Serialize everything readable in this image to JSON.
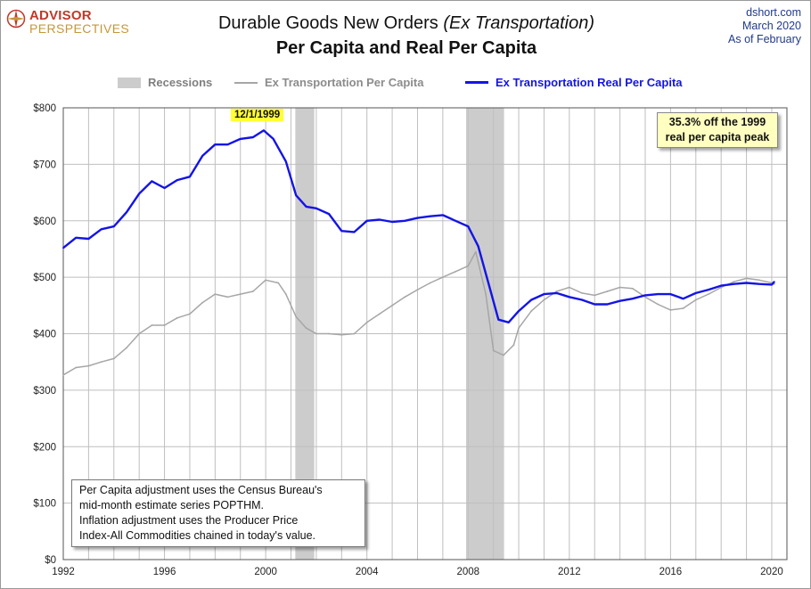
{
  "branding": {
    "logo_line1": "ADVISOR",
    "logo_line2": "PERSPECTIVES",
    "logo_icon": "compass-rose-icon",
    "source_line1": "dshort.com",
    "source_line2": "March 2020",
    "source_line3": "As  of February"
  },
  "chart_title_main": "Durable Goods New Orders",
  "chart_title_italic": "(Ex Transportation)",
  "chart_subtitle": "Per Capita and Real Per Capita",
  "legend": {
    "recessions": "Recessions",
    "nominal": "Ex Transportation Per Capita",
    "real": "Ex Transportation Real Per Capita"
  },
  "annotations": {
    "peak_label": "12/1/1999",
    "callout_line1": "35.3% off the 1999",
    "callout_line2": "real per capita peak"
  },
  "note": {
    "line1": "Per Capita adjustment uses the Census Bureau's",
    "line2": "mid-month estimate series POPTHM.",
    "line3": "Inflation adjustment uses the Producer Price",
    "line4": "Index-All Commodities chained in today's value."
  },
  "colors": {
    "real_series": "#1414e6",
    "nominal_series": "#a6a6a6",
    "recession_band": "#cccccc",
    "grid": "#bfbfbf",
    "source_text": "#1f3a8a",
    "logo_red": "#c0392b",
    "logo_gold": "#c6963a"
  },
  "chart_data": {
    "type": "line",
    "x_ticks": [
      "1992",
      "1996",
      "2000",
      "2004",
      "2008",
      "2012",
      "2016",
      "2020"
    ],
    "y_ticks": [
      "$0",
      "$100",
      "$200",
      "$300",
      "$400",
      "$500",
      "$600",
      "$700",
      "$800"
    ],
    "xlim": [
      1992,
      2020.6
    ],
    "ylim": [
      0,
      800
    ],
    "grid": true,
    "legend_position": "top",
    "recessions": [
      [
        2001.17,
        2001.92
      ],
      [
        2007.92,
        2009.42
      ]
    ],
    "series": [
      {
        "name": "Ex Transportation Real Per Capita",
        "points": [
          [
            1992.0,
            552
          ],
          [
            1992.5,
            570
          ],
          [
            1993.0,
            568
          ],
          [
            1993.5,
            585
          ],
          [
            1994.0,
            590
          ],
          [
            1994.5,
            615
          ],
          [
            1995.0,
            648
          ],
          [
            1995.5,
            670
          ],
          [
            1996.0,
            658
          ],
          [
            1996.5,
            672
          ],
          [
            1997.0,
            678
          ],
          [
            1997.5,
            715
          ],
          [
            1998.0,
            735
          ],
          [
            1998.5,
            735
          ],
          [
            1999.0,
            745
          ],
          [
            1999.5,
            748
          ],
          [
            1999.92,
            760
          ],
          [
            2000.3,
            745
          ],
          [
            2000.8,
            705
          ],
          [
            2001.2,
            645
          ],
          [
            2001.6,
            625
          ],
          [
            2002.0,
            622
          ],
          [
            2002.5,
            612
          ],
          [
            2003.0,
            582
          ],
          [
            2003.5,
            580
          ],
          [
            2004.0,
            600
          ],
          [
            2004.5,
            602
          ],
          [
            2005.0,
            598
          ],
          [
            2005.5,
            600
          ],
          [
            2006.0,
            605
          ],
          [
            2006.5,
            608
          ],
          [
            2007.0,
            610
          ],
          [
            2007.5,
            600
          ],
          [
            2008.0,
            590
          ],
          [
            2008.4,
            555
          ],
          [
            2008.8,
            490
          ],
          [
            2009.2,
            425
          ],
          [
            2009.6,
            420
          ],
          [
            2010.0,
            440
          ],
          [
            2010.5,
            460
          ],
          [
            2011.0,
            470
          ],
          [
            2011.5,
            472
          ],
          [
            2012.0,
            465
          ],
          [
            2012.5,
            460
          ],
          [
            2013.0,
            452
          ],
          [
            2013.5,
            452
          ],
          [
            2014.0,
            458
          ],
          [
            2014.5,
            462
          ],
          [
            2015.0,
            468
          ],
          [
            2015.5,
            470
          ],
          [
            2016.0,
            470
          ],
          [
            2016.5,
            462
          ],
          [
            2017.0,
            472
          ],
          [
            2017.5,
            478
          ],
          [
            2018.0,
            485
          ],
          [
            2018.5,
            488
          ],
          [
            2019.0,
            490
          ],
          [
            2019.5,
            488
          ],
          [
            2020.0,
            487
          ],
          [
            2020.1,
            492
          ]
        ]
      },
      {
        "name": "Ex Transportation Per Capita",
        "points": [
          [
            1992.0,
            327
          ],
          [
            1992.5,
            340
          ],
          [
            1993.0,
            343
          ],
          [
            1993.5,
            350
          ],
          [
            1994.0,
            356
          ],
          [
            1994.5,
            375
          ],
          [
            1995.0,
            400
          ],
          [
            1995.5,
            415
          ],
          [
            1996.0,
            415
          ],
          [
            1996.5,
            428
          ],
          [
            1997.0,
            435
          ],
          [
            1997.5,
            455
          ],
          [
            1998.0,
            470
          ],
          [
            1998.5,
            465
          ],
          [
            1999.0,
            470
          ],
          [
            1999.5,
            475
          ],
          [
            2000.0,
            495
          ],
          [
            2000.5,
            490
          ],
          [
            2000.8,
            470
          ],
          [
            2001.2,
            430
          ],
          [
            2001.6,
            410
          ],
          [
            2002.0,
            400
          ],
          [
            2002.5,
            400
          ],
          [
            2003.0,
            398
          ],
          [
            2003.5,
            400
          ],
          [
            2004.0,
            420
          ],
          [
            2004.5,
            435
          ],
          [
            2005.0,
            450
          ],
          [
            2005.5,
            465
          ],
          [
            2006.0,
            478
          ],
          [
            2006.5,
            490
          ],
          [
            2007.0,
            500
          ],
          [
            2007.5,
            510
          ],
          [
            2008.0,
            520
          ],
          [
            2008.3,
            545
          ],
          [
            2008.7,
            470
          ],
          [
            2009.0,
            370
          ],
          [
            2009.4,
            362
          ],
          [
            2009.8,
            380
          ],
          [
            2010.0,
            410
          ],
          [
            2010.5,
            440
          ],
          [
            2011.0,
            460
          ],
          [
            2011.5,
            475
          ],
          [
            2012.0,
            482
          ],
          [
            2012.5,
            472
          ],
          [
            2013.0,
            468
          ],
          [
            2013.5,
            475
          ],
          [
            2014.0,
            482
          ],
          [
            2014.5,
            480
          ],
          [
            2015.0,
            465
          ],
          [
            2015.5,
            452
          ],
          [
            2016.0,
            442
          ],
          [
            2016.5,
            445
          ],
          [
            2017.0,
            460
          ],
          [
            2017.5,
            470
          ],
          [
            2018.0,
            482
          ],
          [
            2018.5,
            492
          ],
          [
            2019.0,
            498
          ],
          [
            2019.5,
            495
          ],
          [
            2020.0,
            490
          ],
          [
            2020.1,
            488
          ]
        ]
      }
    ]
  }
}
